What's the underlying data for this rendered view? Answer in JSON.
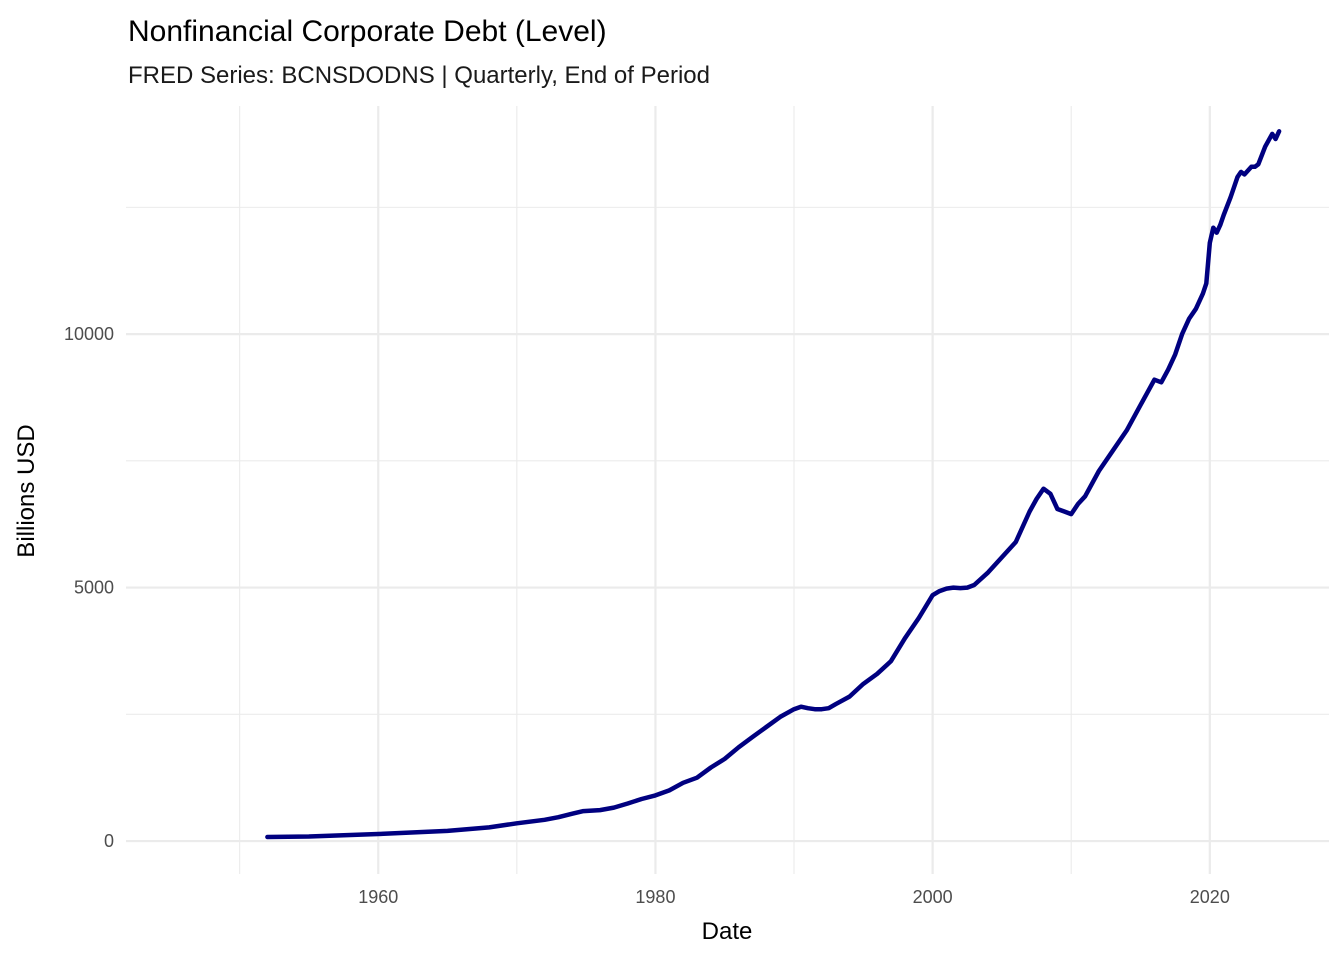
{
  "chart_data": {
    "type": "line",
    "title": "Nonfinancial Corporate Debt (Level)",
    "subtitle": "FRED Series: BCNSDODNS | Quarterly, End of Period",
    "xlabel": "Date",
    "ylabel": "Billions USD",
    "x_ticks": [
      "1960",
      "1980",
      "2000",
      "2020"
    ],
    "y_ticks": [
      "0",
      "5000",
      "10000"
    ],
    "xlim": [
      1941.8,
      2028.6
    ],
    "ylim": [
      -650,
      14500
    ],
    "grid": true,
    "legend": "none",
    "line_color": "#000080",
    "series": [
      {
        "x": [
          1952.0,
          1955.0,
          1960.0,
          1965.0,
          1968.0,
          1970.0,
          1972.0,
          1973.0,
          1974.0,
          1974.8,
          1976.0,
          1977.0,
          1978.0,
          1979.0,
          1980.0,
          1981.0,
          1982.0,
          1983.0,
          1984.0,
          1985.0,
          1986.0,
          1987.0,
          1988.0,
          1989.0,
          1990.0,
          1990.5,
          1991.0,
          1991.5,
          1992.0,
          1992.5,
          1993.0,
          1994.0,
          1995.0,
          1996.0,
          1997.0,
          1998.0,
          1999.0,
          2000.0,
          2000.5,
          2001.0,
          2001.5,
          2002.0,
          2002.5,
          2003.0,
          2004.0,
          2005.0,
          2006.0,
          2007.0,
          2007.5,
          2008.0,
          2008.5,
          2009.0,
          2009.5,
          2010.0,
          2010.5,
          2011.0,
          2012.0,
          2013.0,
          2014.0,
          2015.0,
          2016.0,
          2016.5,
          2017.0,
          2017.5,
          2018.0,
          2018.5,
          2019.0,
          2019.5,
          2019.75,
          2020.0,
          2020.25,
          2020.5,
          2020.75,
          2021.0,
          2021.5,
          2022.0,
          2022.25,
          2022.5,
          2023.0,
          2023.25,
          2023.5,
          2024.0,
          2024.5,
          2024.75,
          2025.0
        ],
        "values": [
          80,
          90,
          140,
          200,
          270,
          350,
          420,
          470,
          540,
          590,
          610,
          660,
          740,
          830,
          900,
          1000,
          1150,
          1250,
          1450,
          1620,
          1850,
          2050,
          2250,
          2450,
          2600,
          2650,
          2620,
          2600,
          2600,
          2620,
          2700,
          2850,
          3100,
          3300,
          3550,
          4000,
          4400,
          4850,
          4930,
          4980,
          5000,
          4990,
          5000,
          5050,
          5300,
          5600,
          5900,
          6500,
          6750,
          6950,
          6850,
          6550,
          6500,
          6450,
          6650,
          6800,
          7300,
          7700,
          8100,
          8600,
          9100,
          9050,
          9300,
          9600,
          10000,
          10300,
          10500,
          10800,
          11000,
          11800,
          12100,
          12000,
          12150,
          12350,
          12700,
          13100,
          13200,
          13150,
          13300,
          13300,
          13350,
          13700,
          13950,
          13850,
          14000
        ]
      }
    ]
  }
}
